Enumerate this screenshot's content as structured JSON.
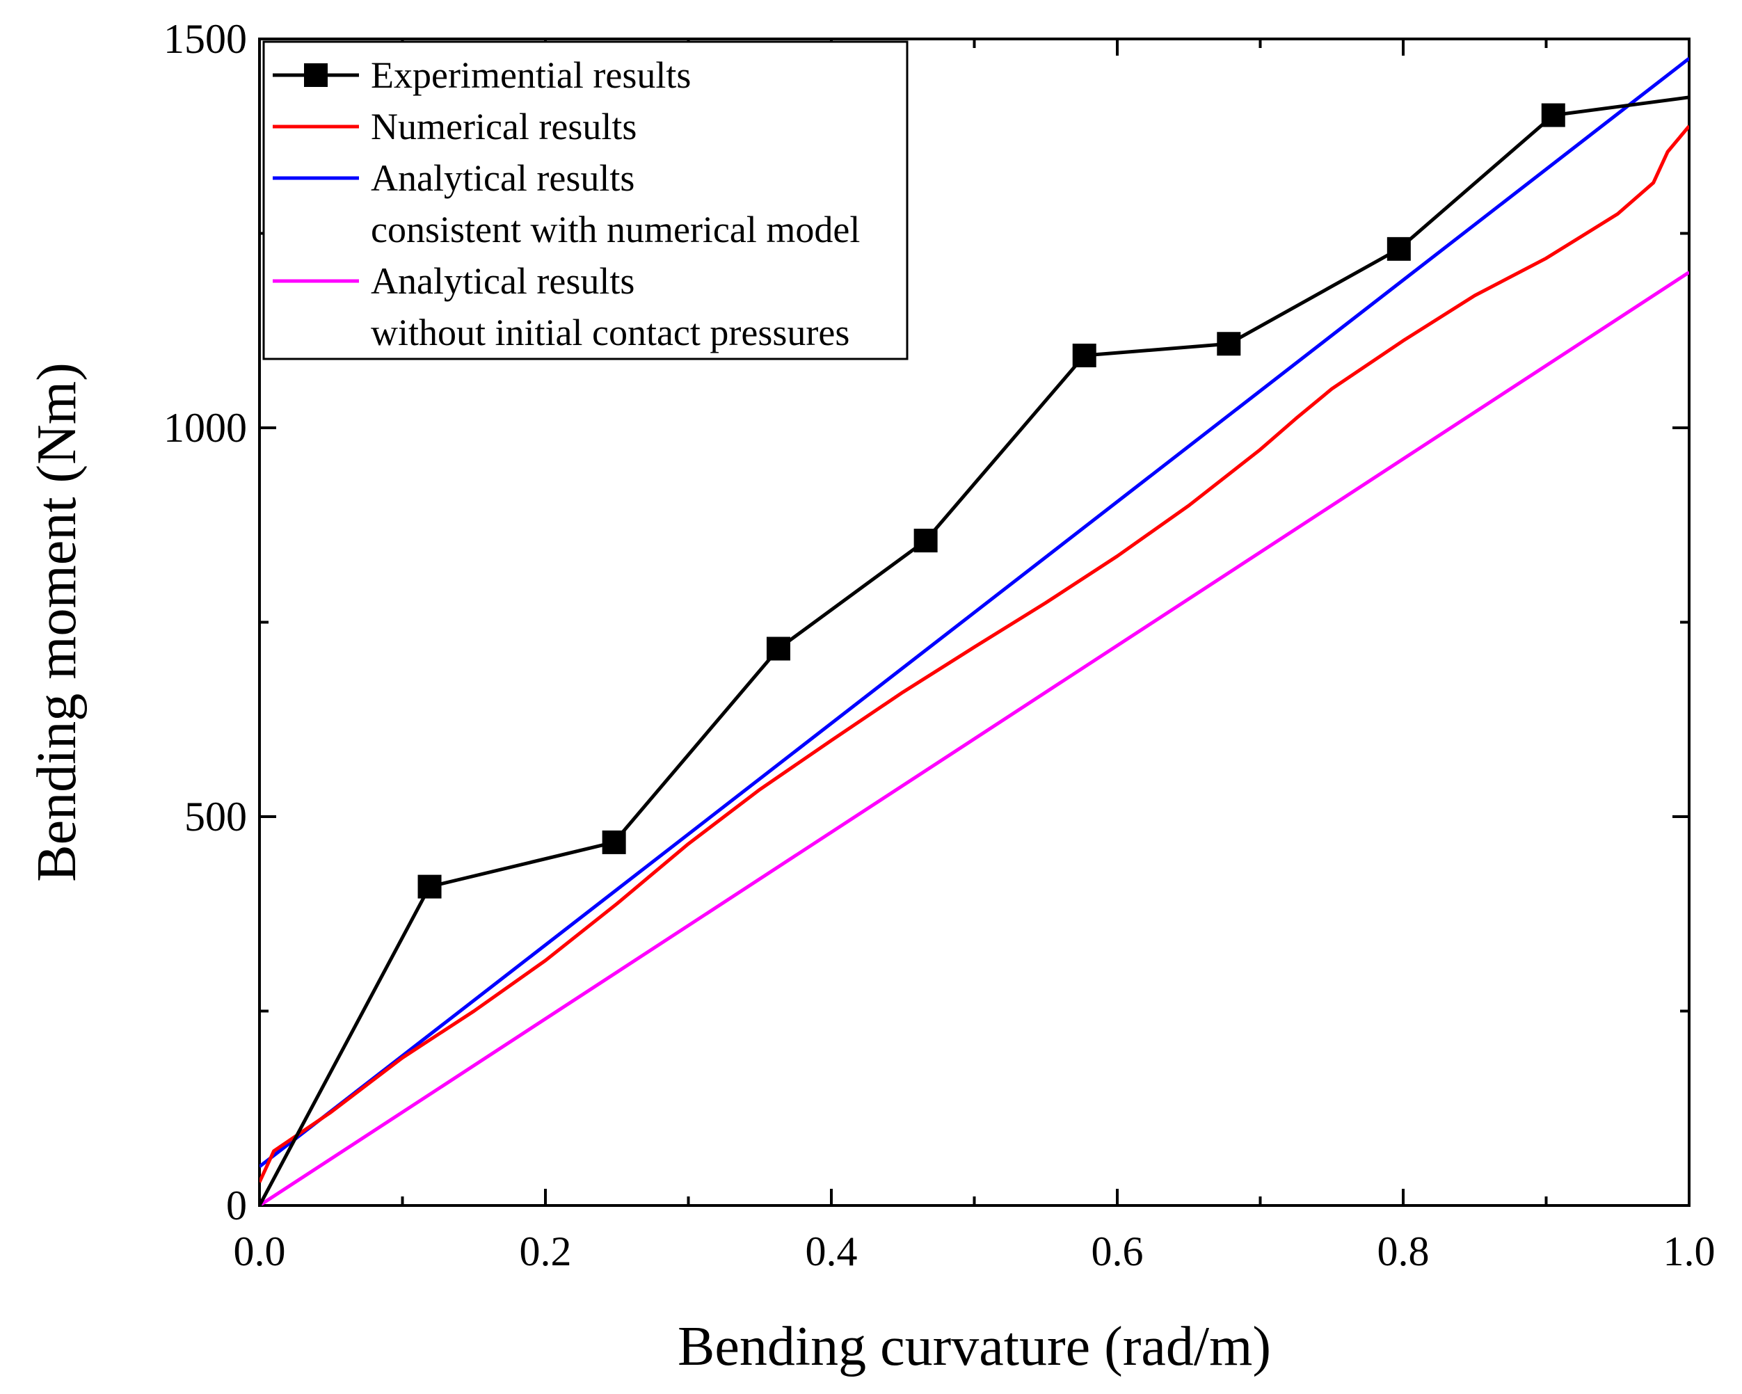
{
  "chart_data": {
    "type": "line",
    "title": "",
    "xlabel": "Bending curvature (rad/m)",
    "ylabel": "Bending moment (Nm)",
    "xlim": [
      0.0,
      1.0
    ],
    "ylim": [
      0,
      1500
    ],
    "x_ticks": [
      "0.0",
      "0.2",
      "0.4",
      "0.6",
      "0.8",
      "1.0"
    ],
    "y_ticks": [
      "0",
      "500",
      "1000",
      "1500"
    ],
    "grid": false,
    "legend_position": "top-left",
    "series": [
      {
        "name": "Experimential results",
        "color": "#000000",
        "marker": "square",
        "x": [
          0.0,
          0.119,
          0.248,
          0.363,
          0.466,
          0.577,
          0.678,
          0.797,
          0.905,
          1.0
        ],
        "y": [
          0,
          410,
          467,
          716,
          855,
          1093,
          1108,
          1230,
          1402,
          1425
        ]
      },
      {
        "name": "Numerical results",
        "color": "#ff0000",
        "marker": "none",
        "x": [
          0.0,
          0.01,
          0.05,
          0.1,
          0.15,
          0.2,
          0.25,
          0.3,
          0.35,
          0.4,
          0.45,
          0.5,
          0.55,
          0.6,
          0.65,
          0.7,
          0.725,
          0.75,
          0.8,
          0.85,
          0.9,
          0.95,
          0.975,
          0.985,
          1.0
        ],
        "y": [
          30,
          70,
          120,
          190,
          250,
          315,
          388,
          465,
          535,
          598,
          660,
          718,
          775,
          835,
          900,
          972,
          1012,
          1050,
          1112,
          1170,
          1218,
          1275,
          1315,
          1355,
          1388
        ]
      },
      {
        "name": "Analytical results consistent with numerical model",
        "color": "#0000ff",
        "marker": "none",
        "x": [
          0.0,
          1.0
        ],
        "y": [
          50,
          1475
        ]
      },
      {
        "name": "Analytical results without initial contact pressures",
        "color": "#ff00ff",
        "marker": "none",
        "x": [
          0.0,
          1.0
        ],
        "y": [
          0,
          1200
        ]
      }
    ],
    "legend": {
      "entries": [
        {
          "lines": [
            "Experimential results"
          ],
          "color": "#000000",
          "marker": "square"
        },
        {
          "lines": [
            "Numerical results"
          ],
          "color": "#ff0000",
          "marker": "none"
        },
        {
          "lines": [
            "Analytical results",
            "consistent with numerical model"
          ],
          "color": "#0000ff",
          "marker": "none"
        },
        {
          "lines": [
            "Analytical results",
            "without initial contact pressures"
          ],
          "color": "#ff00ff",
          "marker": "none"
        }
      ]
    }
  }
}
